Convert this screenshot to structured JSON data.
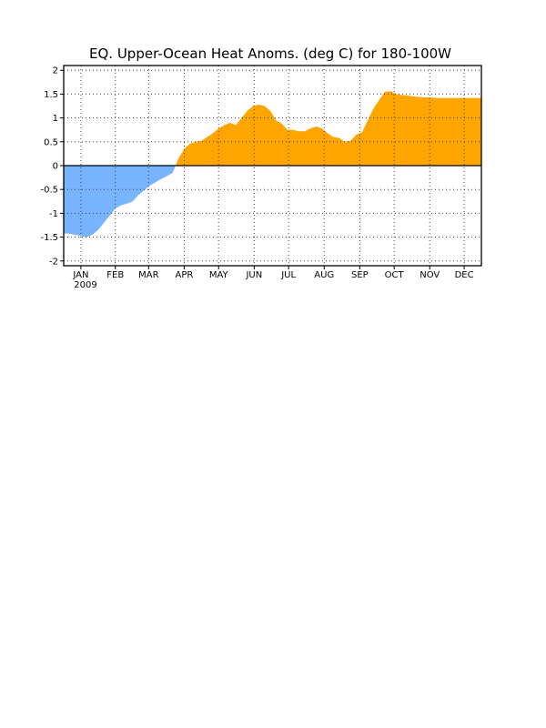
{
  "chart_data": {
    "type": "area",
    "title": "EQ. Upper-Ocean Heat Anoms. (deg C) for 180-100W",
    "xlabel": "",
    "ylabel": "",
    "year_label": "2009",
    "x_range": [
      "2009-01-01",
      "2009-12-31"
    ],
    "ylim": [
      -2.1,
      2.1
    ],
    "yticks": [
      2,
      1.5,
      1,
      0.5,
      0,
      -0.5,
      -1,
      -1.5,
      -2
    ],
    "ytick_labels": [
      "2",
      "1.5",
      "1",
      "0.5",
      "0",
      "-0.5",
      "-1",
      "-1.5",
      "-2"
    ],
    "xticks": [
      {
        "label": "JAN",
        "date": "2009-01-16"
      },
      {
        "label": "FEB",
        "date": "2009-02-15"
      },
      {
        "label": "MAR",
        "date": "2009-03-16"
      },
      {
        "label": "APR",
        "date": "2009-04-16"
      },
      {
        "label": "MAY",
        "date": "2009-05-16"
      },
      {
        "label": "JUN",
        "date": "2009-06-16"
      },
      {
        "label": "JUL",
        "date": "2009-07-16"
      },
      {
        "label": "AUG",
        "date": "2009-08-16"
      },
      {
        "label": "SEP",
        "date": "2009-09-16"
      },
      {
        "label": "OCT",
        "date": "2009-10-16"
      },
      {
        "label": "NOV",
        "date": "2009-11-16"
      },
      {
        "label": "DEC",
        "date": "2009-12-16"
      }
    ],
    "grid": true,
    "positive_color": "#ffa500",
    "negative_color": "#78b4ff",
    "series": [
      {
        "x": [
          "2009-01-01",
          "2009-01-06",
          "2009-01-11",
          "2009-01-16",
          "2009-01-21",
          "2009-01-26",
          "2009-01-31",
          "2009-02-05",
          "2009-02-10",
          "2009-02-15",
          "2009-02-20",
          "2009-02-25",
          "2009-03-02",
          "2009-03-07",
          "2009-03-12",
          "2009-03-17",
          "2009-03-22",
          "2009-03-27",
          "2009-04-01",
          "2009-04-06",
          "2009-04-11",
          "2009-04-16",
          "2009-04-21",
          "2009-04-26",
          "2009-05-01",
          "2009-05-06",
          "2009-05-11",
          "2009-05-16",
          "2009-05-21",
          "2009-05-26",
          "2009-05-31",
          "2009-06-05",
          "2009-06-10",
          "2009-06-15",
          "2009-06-20",
          "2009-06-25",
          "2009-06-30",
          "2009-07-05",
          "2009-07-10",
          "2009-07-15",
          "2009-07-20",
          "2009-07-25",
          "2009-07-30",
          "2009-08-04",
          "2009-08-09",
          "2009-08-14",
          "2009-08-19",
          "2009-08-24",
          "2009-08-29",
          "2009-09-03",
          "2009-09-08",
          "2009-09-13",
          "2009-09-18",
          "2009-09-23",
          "2009-09-28",
          "2009-10-03",
          "2009-10-08",
          "2009-10-13",
          "2009-10-18",
          "2009-10-23",
          "2009-10-28",
          "2009-11-02",
          "2009-11-07",
          "2009-11-12",
          "2009-11-17",
          "2009-11-22",
          "2009-11-27",
          "2009-12-02",
          "2009-12-07",
          "2009-12-12",
          "2009-12-17",
          "2009-12-22",
          "2009-12-27",
          "2009-12-31"
        ],
        "values": [
          -1.42,
          -1.43,
          -1.45,
          -1.48,
          -1.5,
          -1.45,
          -1.35,
          -1.2,
          -1.05,
          -0.9,
          -0.83,
          -0.8,
          -0.75,
          -0.62,
          -0.52,
          -0.42,
          -0.35,
          -0.28,
          -0.22,
          -0.15,
          0.15,
          0.35,
          0.46,
          0.5,
          0.52,
          0.6,
          0.68,
          0.78,
          0.85,
          0.9,
          0.85,
          1.0,
          1.15,
          1.25,
          1.28,
          1.25,
          1.15,
          0.95,
          0.88,
          0.75,
          0.75,
          0.72,
          0.72,
          0.78,
          0.82,
          0.78,
          0.68,
          0.6,
          0.58,
          0.5,
          0.52,
          0.65,
          0.7,
          0.95,
          1.2,
          1.38,
          1.55,
          1.56,
          1.5,
          1.48,
          1.47,
          1.45,
          1.44,
          1.43,
          1.43,
          1.42,
          1.42,
          1.42,
          1.42,
          1.42,
          1.42,
          1.42,
          1.42,
          1.42
        ]
      }
    ]
  }
}
